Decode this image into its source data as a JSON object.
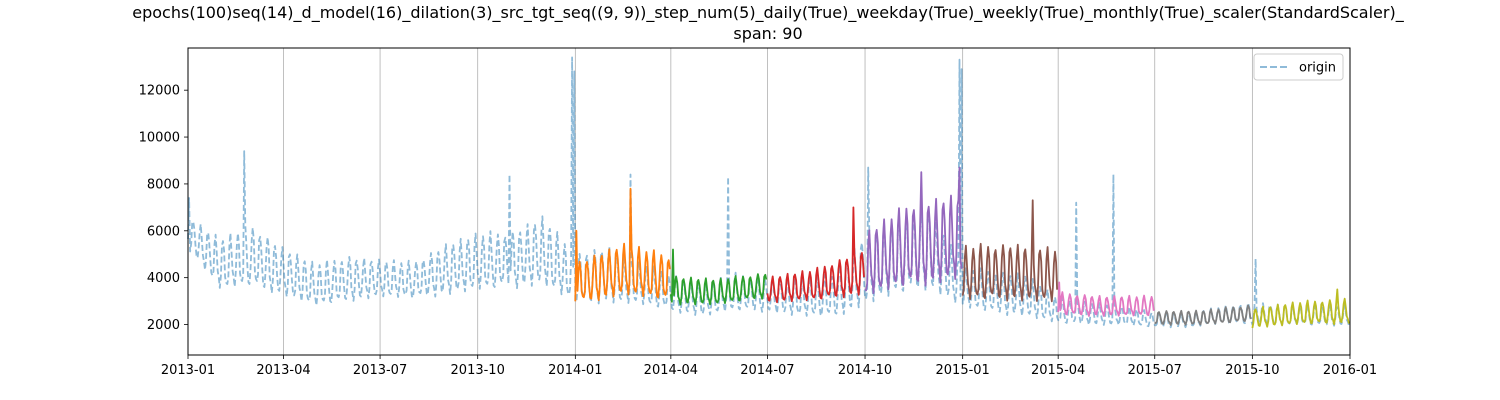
{
  "chart_data": {
    "type": "line",
    "title_line_1": "epochs(100)seq(14)_d_model(16)_dilation(3)_src_tgt_seq((9, 9))_step_num(5)_daily(True)_weekday(True)_weekly(True)_monthly(True)_scaler(StandardScaler)_",
    "title_line_2": "span: 90",
    "xlabel": "",
    "ylabel": "",
    "x_range": [
      "2013-01-01",
      "2016-01-01"
    ],
    "ylim": [
      700,
      13800
    ],
    "x_ticks": [
      "2013-01",
      "2013-04",
      "2013-07",
      "2013-10",
      "2014-01",
      "2014-04",
      "2014-07",
      "2014-10",
      "2015-01",
      "2015-04",
      "2015-07",
      "2015-10",
      "2016-01"
    ],
    "y_ticks": [
      2000,
      4000,
      6000,
      8000,
      10000,
      12000
    ],
    "grid": "vertical lines at x ticks",
    "legend": {
      "position": "upper right",
      "entries": [
        "origin"
      ]
    },
    "series": [
      {
        "name": "origin",
        "style": "dashed",
        "color": "#1f77b4",
        "alpha": 0.5,
        "description": "daily actuals, weekly cycle",
        "anchors": [
          [
            "2013-01-01",
            6000,
            1200
          ],
          [
            "2013-02-01",
            4600,
            1800
          ],
          [
            "2013-03-01",
            5000,
            2200
          ],
          [
            "2013-04-01",
            4300,
            1700
          ],
          [
            "2013-05-01",
            3700,
            1500
          ],
          [
            "2013-06-01",
            4000,
            1600
          ],
          [
            "2013-07-01",
            4000,
            1300
          ],
          [
            "2013-08-01",
            3900,
            1300
          ],
          [
            "2013-09-01",
            4400,
            1800
          ],
          [
            "2013-10-01",
            4700,
            2000
          ],
          [
            "2013-11-01",
            4800,
            2000
          ],
          [
            "2013-12-01",
            5200,
            2400
          ],
          [
            "2014-01-01",
            4000,
            1800
          ],
          [
            "2014-02-01",
            4200,
            2000
          ],
          [
            "2014-03-01",
            3800,
            1500
          ],
          [
            "2014-04-01",
            3400,
            1300
          ],
          [
            "2014-05-01",
            3100,
            1200
          ],
          [
            "2014-06-01",
            3400,
            1300
          ],
          [
            "2014-07-01",
            3300,
            1200
          ],
          [
            "2014-08-01",
            3200,
            1400
          ],
          [
            "2014-09-01",
            3300,
            1600
          ],
          [
            "2014-10-01",
            4400,
            2500
          ],
          [
            "2014-11-01",
            5000,
            2800
          ],
          [
            "2014-12-01",
            5400,
            3000
          ],
          [
            "2015-01-01",
            3600,
            1400
          ],
          [
            "2015-02-01",
            3400,
            1500
          ],
          [
            "2015-03-01",
            3300,
            1500
          ],
          [
            "2015-04-01",
            2600,
            900
          ],
          [
            "2015-05-01",
            2500,
            800
          ],
          [
            "2015-06-01",
            2400,
            700
          ],
          [
            "2015-07-01",
            2200,
            500
          ],
          [
            "2015-08-01",
            2200,
            500
          ],
          [
            "2015-09-01",
            2400,
            600
          ],
          [
            "2015-10-01",
            2500,
            800
          ],
          [
            "2015-11-01",
            2400,
            700
          ],
          [
            "2016-01-01",
            2400,
            700
          ]
        ],
        "spikes": [
          [
            "2013-01-02",
            7400
          ],
          [
            "2013-02-23",
            9400
          ],
          [
            "2013-10-31",
            8400
          ],
          [
            "2013-12-29",
            13400
          ],
          [
            "2013-12-31",
            12800
          ],
          [
            "2014-02-22",
            8400
          ],
          [
            "2014-05-25",
            8300
          ],
          [
            "2014-10-04",
            8700
          ],
          [
            "2014-12-29",
            13300
          ],
          [
            "2014-12-31",
            12900
          ],
          [
            "2015-04-18",
            7200
          ],
          [
            "2015-05-23",
            8400
          ],
          [
            "2015-10-04",
            4800
          ]
        ]
      },
      {
        "name": "",
        "style": "solid",
        "color": "#ff7f0e",
        "start": "2014-01-01",
        "end": "2014-03-31",
        "anchors": [
          [
            "2014-01-01",
            3800,
            1500
          ],
          [
            "2014-02-15",
            4400,
            1800
          ],
          [
            "2014-03-31",
            4000,
            1600
          ]
        ],
        "spikes": [
          [
            "2014-01-02",
            6000
          ],
          [
            "2014-02-22",
            7800
          ]
        ]
      },
      {
        "name": "",
        "style": "solid",
        "color": "#2ca02c",
        "start": "2014-04-01",
        "end": "2014-06-30",
        "anchors": [
          [
            "2014-04-01",
            3500,
            1000
          ],
          [
            "2014-05-15",
            3400,
            900
          ],
          [
            "2014-06-30",
            3700,
            900
          ]
        ],
        "spikes": [
          [
            "2014-04-03",
            5200
          ]
        ]
      },
      {
        "name": "",
        "style": "solid",
        "color": "#d62728",
        "start": "2014-07-01",
        "end": "2014-09-30",
        "anchors": [
          [
            "2014-07-01",
            3500,
            900
          ],
          [
            "2014-08-15",
            3700,
            1100
          ],
          [
            "2014-09-30",
            4300,
            1600
          ]
        ],
        "spikes": [
          [
            "2014-09-20",
            7000
          ]
        ]
      },
      {
        "name": "",
        "style": "solid",
        "color": "#9467bd",
        "start": "2014-10-01",
        "end": "2014-12-31",
        "anchors": [
          [
            "2014-10-01",
            4600,
            2200
          ],
          [
            "2014-11-15",
            5500,
            3000
          ],
          [
            "2014-12-31",
            5800,
            3000
          ]
        ],
        "spikes": [
          [
            "2014-11-23",
            8500
          ],
          [
            "2014-12-29",
            8700
          ]
        ]
      },
      {
        "name": "",
        "style": "solid",
        "color": "#8c564b",
        "start": "2015-01-01",
        "end": "2015-03-31",
        "anchors": [
          [
            "2015-01-01",
            4200,
            1900
          ],
          [
            "2015-02-15",
            4300,
            2000
          ],
          [
            "2015-03-31",
            4100,
            1900
          ]
        ],
        "spikes": [
          [
            "2014-12-31",
            11600
          ],
          [
            "2015-03-08",
            7300
          ]
        ]
      },
      {
        "name": "",
        "style": "solid",
        "color": "#e377c2",
        "start": "2015-04-01",
        "end": "2015-06-30",
        "anchors": [
          [
            "2015-04-01",
            2900,
            800
          ],
          [
            "2015-05-15",
            2800,
            700
          ],
          [
            "2015-06-30",
            2800,
            700
          ]
        ],
        "spikes": [
          [
            "2015-04-02",
            3800
          ]
        ]
      },
      {
        "name": "",
        "style": "solid",
        "color": "#7f7f7f",
        "start": "2015-07-01",
        "end": "2015-09-30",
        "anchors": [
          [
            "2015-07-01",
            2300,
            500
          ],
          [
            "2015-08-15",
            2300,
            500
          ],
          [
            "2015-09-30",
            2500,
            600
          ]
        ],
        "spikes": []
      },
      {
        "name": "",
        "style": "solid",
        "color": "#bcbd22",
        "start": "2015-10-01",
        "end": "2015-12-31",
        "anchors": [
          [
            "2015-10-01",
            2300,
            700
          ],
          [
            "2015-11-15",
            2500,
            800
          ],
          [
            "2015-12-31",
            2600,
            900
          ]
        ],
        "spikes": [
          [
            "2015-12-20",
            3500
          ]
        ]
      }
    ]
  }
}
